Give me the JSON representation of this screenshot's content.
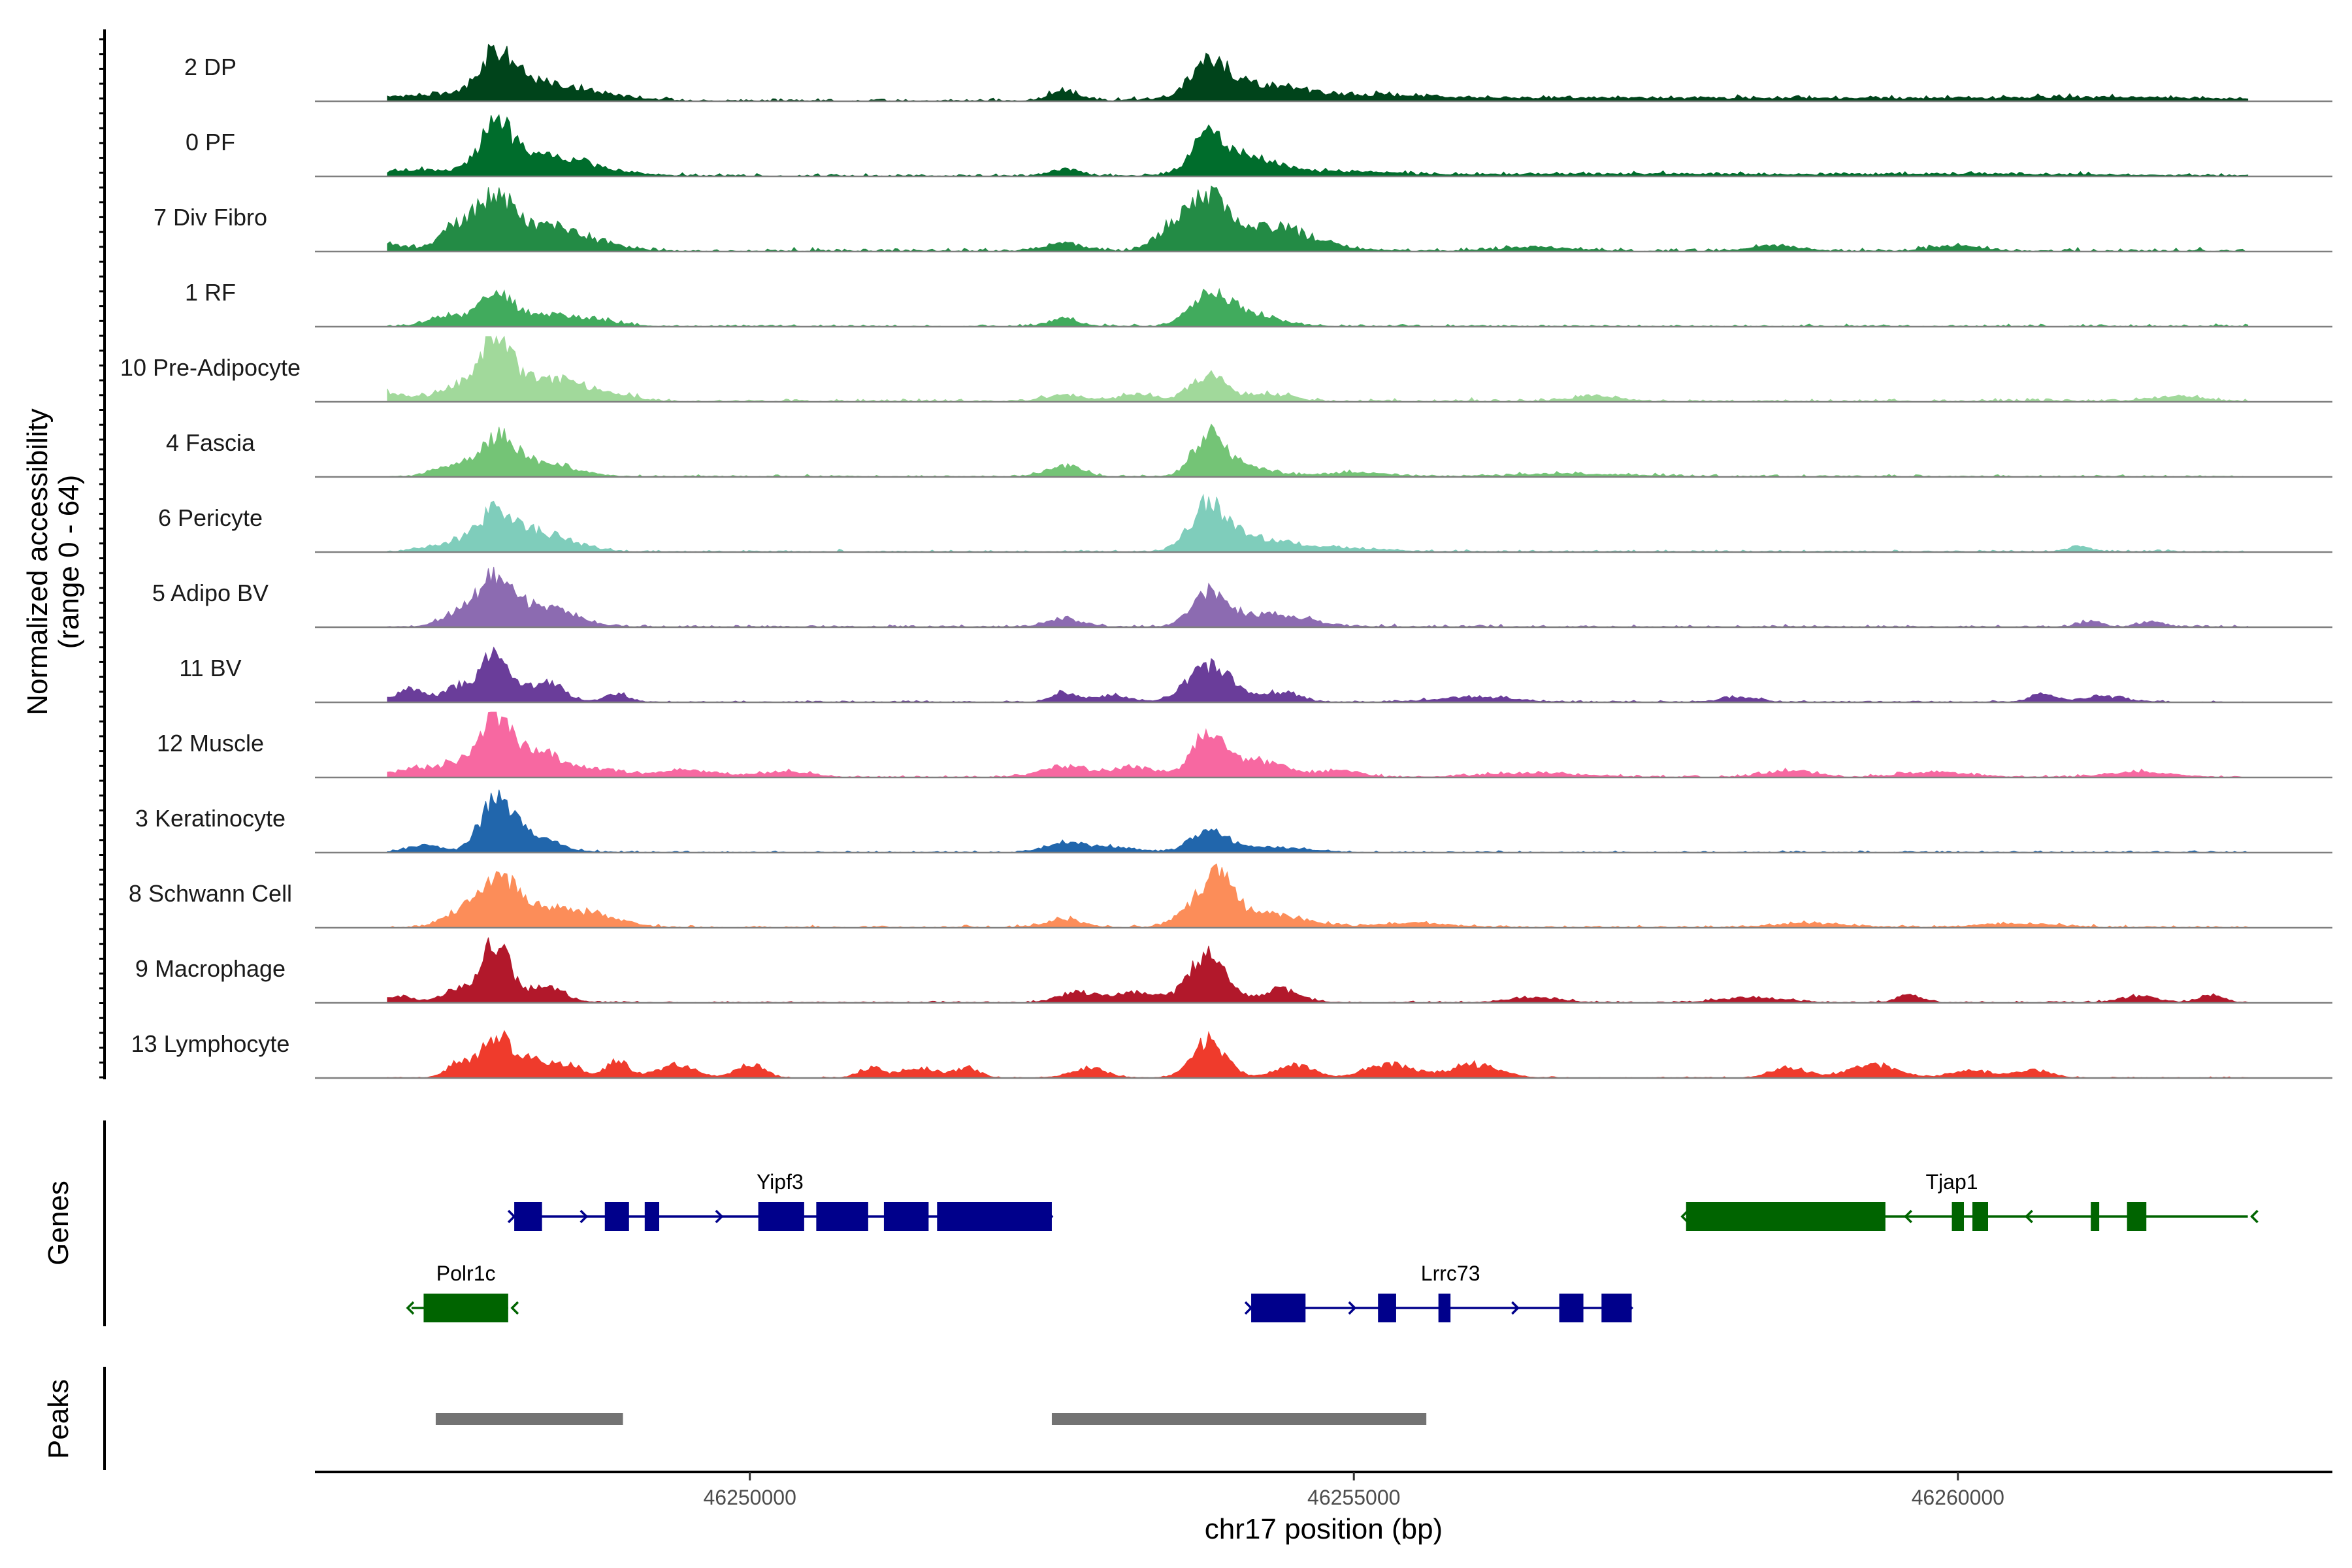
{
  "chart_data": {
    "type": "area",
    "title": "",
    "chromosome": "chr17",
    "xlabel": "chr17 position (bp)",
    "ylabel": "Normalized accessibility",
    "ylabel_range": "(range 0 - 64)",
    "ylim": [
      0,
      64
    ],
    "xlim": [
      46246400,
      46263100
    ],
    "x_ticks": [
      {
        "value": 46250000,
        "label": "46250000"
      },
      {
        "value": 46255000,
        "label": "46255000"
      },
      {
        "value": 46260000,
        "label": "46260000"
      }
    ],
    "series": [
      {
        "name": "2 DP",
        "color": "#00441b",
        "noise": 0.05,
        "peaks": [
          [
            46247300,
            0.08,
            400
          ],
          [
            46247900,
            0.55,
            130
          ],
          [
            46248100,
            0.25,
            300
          ],
          [
            46248600,
            0.12,
            350
          ],
          [
            46252600,
            0.15,
            120
          ],
          [
            46253800,
            0.45,
            140
          ],
          [
            46254100,
            0.25,
            350
          ],
          [
            46255000,
            0.06,
            500
          ],
          [
            46256000,
            0.04,
            1200
          ],
          [
            46259000,
            0.04,
            1500
          ],
          [
            46261500,
            0.04,
            900
          ]
        ]
      },
      {
        "name": "0 PF",
        "color": "#006d2c",
        "noise": 0.05,
        "peaks": [
          [
            46247300,
            0.08,
            400
          ],
          [
            46247900,
            0.6,
            130
          ],
          [
            46248200,
            0.28,
            300
          ],
          [
            46248700,
            0.1,
            300
          ],
          [
            46252600,
            0.1,
            120
          ],
          [
            46253800,
            0.5,
            140
          ],
          [
            46254100,
            0.25,
            300
          ],
          [
            46255000,
            0.05,
            400
          ],
          [
            46257000,
            0.03,
            1000
          ],
          [
            46260000,
            0.03,
            1200
          ]
        ]
      },
      {
        "name": "7 Div Fibro",
        "color": "#238b45",
        "noise": 0.06,
        "peaks": [
          [
            46247000,
            0.1,
            150
          ],
          [
            46247600,
            0.4,
            150
          ],
          [
            46247900,
            0.75,
            130
          ],
          [
            46248300,
            0.4,
            250
          ],
          [
            46248800,
            0.08,
            200
          ],
          [
            46252600,
            0.12,
            150
          ],
          [
            46253500,
            0.3,
            150
          ],
          [
            46253800,
            0.7,
            150
          ],
          [
            46254300,
            0.35,
            350
          ],
          [
            46256500,
            0.06,
            300
          ],
          [
            46258500,
            0.08,
            200
          ],
          [
            46260000,
            0.08,
            200
          ]
        ]
      },
      {
        "name": "1 RF",
        "color": "#41ab5d",
        "noise": 0.04,
        "peaks": [
          [
            46247500,
            0.15,
            150
          ],
          [
            46247900,
            0.5,
            140
          ],
          [
            46248300,
            0.15,
            200
          ],
          [
            46248700,
            0.1,
            200
          ],
          [
            46252600,
            0.12,
            120
          ],
          [
            46253800,
            0.45,
            150
          ],
          [
            46254100,
            0.2,
            250
          ]
        ]
      },
      {
        "name": "10 Pre-Adipocyte",
        "color": "#a1d99b",
        "noise": 0.06,
        "peaks": [
          [
            46247000,
            0.12,
            200
          ],
          [
            46247600,
            0.25,
            150
          ],
          [
            46247900,
            0.85,
            110
          ],
          [
            46248200,
            0.35,
            250
          ],
          [
            46248700,
            0.15,
            250
          ],
          [
            46252600,
            0.1,
            150
          ],
          [
            46253200,
            0.1,
            150
          ],
          [
            46253800,
            0.4,
            140
          ],
          [
            46254300,
            0.1,
            200
          ],
          [
            46257000,
            0.08,
            200
          ],
          [
            46261800,
            0.08,
            200
          ]
        ]
      },
      {
        "name": "4 Fascia",
        "color": "#74c476",
        "noise": 0.04,
        "peaks": [
          [
            46247500,
            0.12,
            150
          ],
          [
            46247900,
            0.55,
            160
          ],
          [
            46248300,
            0.2,
            250
          ],
          [
            46252600,
            0.15,
            150
          ],
          [
            46253800,
            0.6,
            130
          ],
          [
            46254100,
            0.15,
            200
          ],
          [
            46255000,
            0.06,
            300
          ],
          [
            46256800,
            0.04,
            500
          ]
        ]
      },
      {
        "name": "6 Pericyte",
        "color": "#7fcdbb",
        "noise": 0.04,
        "peaks": [
          [
            46247500,
            0.1,
            200
          ],
          [
            46247900,
            0.55,
            170
          ],
          [
            46248300,
            0.25,
            250
          ],
          [
            46253800,
            0.65,
            150
          ],
          [
            46254200,
            0.2,
            300
          ],
          [
            46255000,
            0.05,
            300
          ],
          [
            46261000,
            0.08,
            100
          ]
        ]
      },
      {
        "name": "5 Adipo BV",
        "color": "#8c6bb1",
        "noise": 0.04,
        "peaks": [
          [
            46247600,
            0.2,
            150
          ],
          [
            46247900,
            0.7,
            140
          ],
          [
            46248300,
            0.3,
            250
          ],
          [
            46252600,
            0.12,
            150
          ],
          [
            46253800,
            0.5,
            140
          ],
          [
            46254300,
            0.2,
            300
          ],
          [
            46261100,
            0.08,
            100
          ],
          [
            46261600,
            0.08,
            100
          ]
        ]
      },
      {
        "name": "11 BV",
        "color": "#6a3d9a",
        "noise": 0.03,
        "peaks": [
          [
            46247200,
            0.2,
            120
          ],
          [
            46247600,
            0.25,
            120
          ],
          [
            46247900,
            0.75,
            110
          ],
          [
            46248300,
            0.3,
            150
          ],
          [
            46248900,
            0.12,
            100
          ],
          [
            46252600,
            0.15,
            100
          ],
          [
            46253000,
            0.1,
            150
          ],
          [
            46253700,
            0.3,
            150
          ],
          [
            46253900,
            0.35,
            150
          ],
          [
            46254400,
            0.15,
            150
          ],
          [
            46256000,
            0.08,
            300
          ],
          [
            46258200,
            0.08,
            150
          ],
          [
            46260700,
            0.12,
            100
          ],
          [
            46261200,
            0.08,
            200
          ]
        ]
      },
      {
        "name": "12 Muscle",
        "color": "#f768a1",
        "noise": 0.04,
        "peaks": [
          [
            46247200,
            0.12,
            150
          ],
          [
            46247600,
            0.25,
            150
          ],
          [
            46247900,
            0.85,
            110
          ],
          [
            46248200,
            0.4,
            200
          ],
          [
            46248700,
            0.12,
            250
          ],
          [
            46249500,
            0.1,
            250
          ],
          [
            46250300,
            0.08,
            200
          ],
          [
            46252600,
            0.15,
            200
          ],
          [
            46253200,
            0.15,
            200
          ],
          [
            46253800,
            0.6,
            130
          ],
          [
            46254200,
            0.25,
            250
          ],
          [
            46254900,
            0.1,
            150
          ],
          [
            46256500,
            0.06,
            400
          ],
          [
            46258600,
            0.1,
            200
          ],
          [
            46259800,
            0.08,
            250
          ],
          [
            46261500,
            0.08,
            250
          ]
        ]
      },
      {
        "name": "3 Keratinocyte",
        "color": "#2166ac",
        "noise": 0.03,
        "peaks": [
          [
            46247300,
            0.1,
            150
          ],
          [
            46247900,
            0.75,
            130
          ],
          [
            46248200,
            0.25,
            200
          ],
          [
            46252600,
            0.15,
            150
          ],
          [
            46253000,
            0.08,
            200
          ],
          [
            46253800,
            0.3,
            150
          ],
          [
            46254300,
            0.08,
            300
          ]
        ]
      },
      {
        "name": "8 Schwann Cell",
        "color": "#fc8d59",
        "noise": 0.04,
        "peaks": [
          [
            46247600,
            0.2,
            150
          ],
          [
            46247900,
            0.65,
            150
          ],
          [
            46248300,
            0.3,
            300
          ],
          [
            46248800,
            0.1,
            200
          ],
          [
            46252600,
            0.12,
            150
          ],
          [
            46253700,
            0.3,
            150
          ],
          [
            46253900,
            0.55,
            130
          ],
          [
            46254300,
            0.2,
            300
          ],
          [
            46255500,
            0.06,
            300
          ],
          [
            46258800,
            0.06,
            300
          ],
          [
            46260500,
            0.06,
            300
          ]
        ]
      },
      {
        "name": "9 Macrophage",
        "color": "#b2182b",
        "noise": 0.03,
        "peaks": [
          [
            46247100,
            0.1,
            100
          ],
          [
            46247600,
            0.2,
            150
          ],
          [
            46247900,
            0.9,
            110
          ],
          [
            46248300,
            0.25,
            150
          ],
          [
            46252700,
            0.15,
            150
          ],
          [
            46253200,
            0.15,
            200
          ],
          [
            46253800,
            0.75,
            150
          ],
          [
            46254400,
            0.2,
            150
          ],
          [
            46256500,
            0.08,
            200
          ],
          [
            46258300,
            0.08,
            250
          ],
          [
            46259600,
            0.12,
            100
          ],
          [
            46261500,
            0.1,
            150
          ],
          [
            46262100,
            0.12,
            100
          ]
        ]
      },
      {
        "name": "13 Lymphocyte",
        "color": "#ef3b2c",
        "noise": 0.02,
        "peaks": [
          [
            46247600,
            0.25,
            100
          ],
          [
            46247900,
            0.65,
            110
          ],
          [
            46248200,
            0.3,
            120
          ],
          [
            46248500,
            0.2,
            100
          ],
          [
            46248900,
            0.25,
            100
          ],
          [
            46249400,
            0.2,
            150
          ],
          [
            46250000,
            0.2,
            120
          ],
          [
            46251000,
            0.15,
            100
          ],
          [
            46251400,
            0.15,
            150
          ],
          [
            46251800,
            0.15,
            100
          ],
          [
            46252800,
            0.15,
            150
          ],
          [
            46253800,
            0.55,
            140
          ],
          [
            46254500,
            0.2,
            150
          ],
          [
            46255300,
            0.2,
            200
          ],
          [
            46256000,
            0.2,
            200
          ],
          [
            46258600,
            0.15,
            150
          ],
          [
            46259300,
            0.2,
            200
          ],
          [
            46260100,
            0.12,
            150
          ],
          [
            46260600,
            0.12,
            150
          ]
        ]
      }
    ],
    "genes": [
      {
        "name": "Yipf3",
        "strand": "+",
        "row": 0,
        "color": "#00008b",
        "start": 46248050,
        "end": 46252500,
        "exons": [
          [
            46248050,
            46248280
          ],
          [
            46248800,
            46249000
          ],
          [
            46249130,
            46249250
          ],
          [
            46250070,
            46250450
          ],
          [
            46250550,
            46250980
          ],
          [
            46251110,
            46251480
          ],
          [
            46251550,
            46252500
          ]
        ]
      },
      {
        "name": "Tjap1",
        "strand": "-",
        "row": 0,
        "color": "#006400",
        "start": 46257750,
        "end": 46262400,
        "exons": [
          [
            46257750,
            46259400
          ],
          [
            46259950,
            46260050
          ],
          [
            46260120,
            46260250
          ],
          [
            46261100,
            46261170
          ],
          [
            46261400,
            46261560
          ]
        ]
      },
      {
        "name": "Polr1c",
        "strand": "-",
        "row": 1,
        "color": "#006400",
        "start": 46247200,
        "end": 46248000,
        "exons": [
          [
            46247300,
            46248000
          ]
        ]
      },
      {
        "name": "Lrrc73",
        "strand": "+",
        "row": 1,
        "color": "#00008b",
        "start": 46254150,
        "end": 46257300,
        "exons": [
          [
            46254150,
            46254600
          ],
          [
            46255200,
            46255350
          ],
          [
            46255700,
            46255800
          ],
          [
            46256700,
            46256900
          ],
          [
            46257050,
            46257300
          ]
        ]
      }
    ],
    "peaks": [
      [
        46247400,
        46248950
      ],
      [
        46252500,
        46255600
      ]
    ],
    "panel_labels": {
      "genes": "Genes",
      "peaks": "Peaks"
    }
  }
}
